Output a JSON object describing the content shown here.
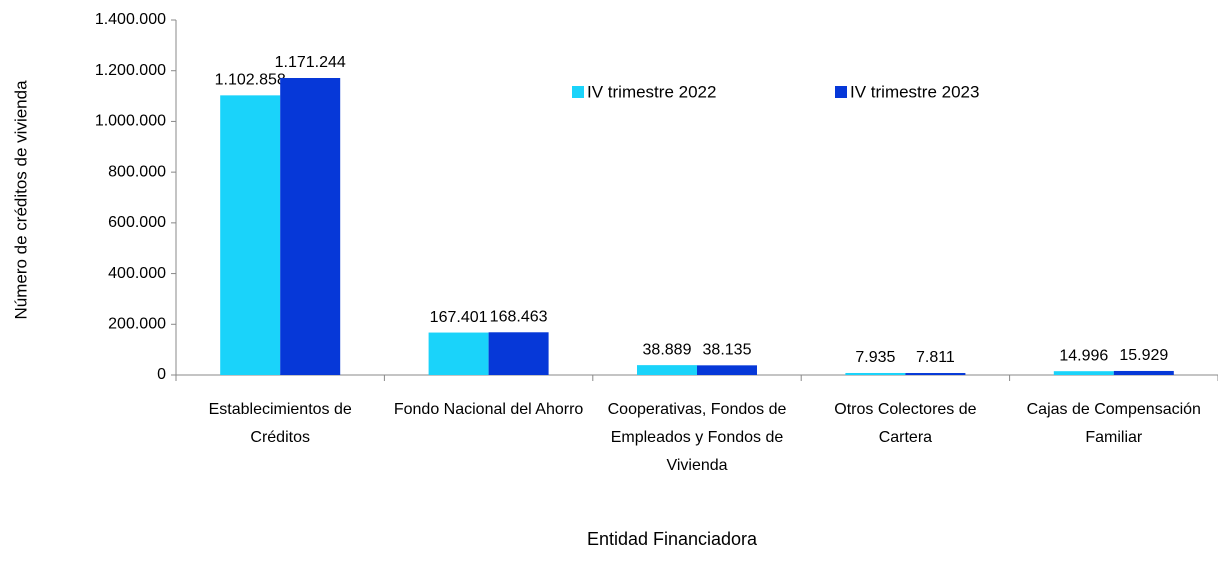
{
  "chart_data": {
    "type": "bar",
    "y_label": "Número de créditos de vivienda",
    "x_label": "Entidad Financiadora",
    "categories": [
      "Establecimientos de Créditos",
      "Fondo Nacional del Ahorro",
      "Cooperativas, Fondos de Empleados y Fondos de Vivienda",
      "Otros Colectores de Cartera",
      "Cajas de Compensación Familiar"
    ],
    "series": [
      {
        "name": "IV trimestre 2022",
        "color": "#1ad3fa",
        "values": [
          1102858,
          167401,
          38889,
          7935,
          14996
        ],
        "value_labels": [
          "1.102.858",
          "167.401",
          "38.889",
          "7.935",
          "14.996"
        ]
      },
      {
        "name": "IV trimestre 2023",
        "color": "#0638d8",
        "values": [
          1171244,
          168463,
          38135,
          7811,
          15929
        ],
        "value_labels": [
          "1.171.244",
          "168.463",
          "38.135",
          "7.811",
          "15.929"
        ]
      }
    ],
    "ylim": [
      0,
      1400000
    ],
    "yticks": [
      0,
      {
        "value": 200000,
        "label": "200.000"
      },
      {
        "value": 400000,
        "label": "400.000"
      },
      {
        "value": 600000,
        "label": "600.000"
      },
      {
        "value": 800000,
        "label": "800.000"
      },
      {
        "value": 1000000,
        "label": "1.000.000"
      },
      {
        "value": 1200000,
        "label": "1.200.000"
      },
      {
        "value": 1400000,
        "label": "1.400.000"
      }
    ],
    "grid": false,
    "legend": "top"
  }
}
